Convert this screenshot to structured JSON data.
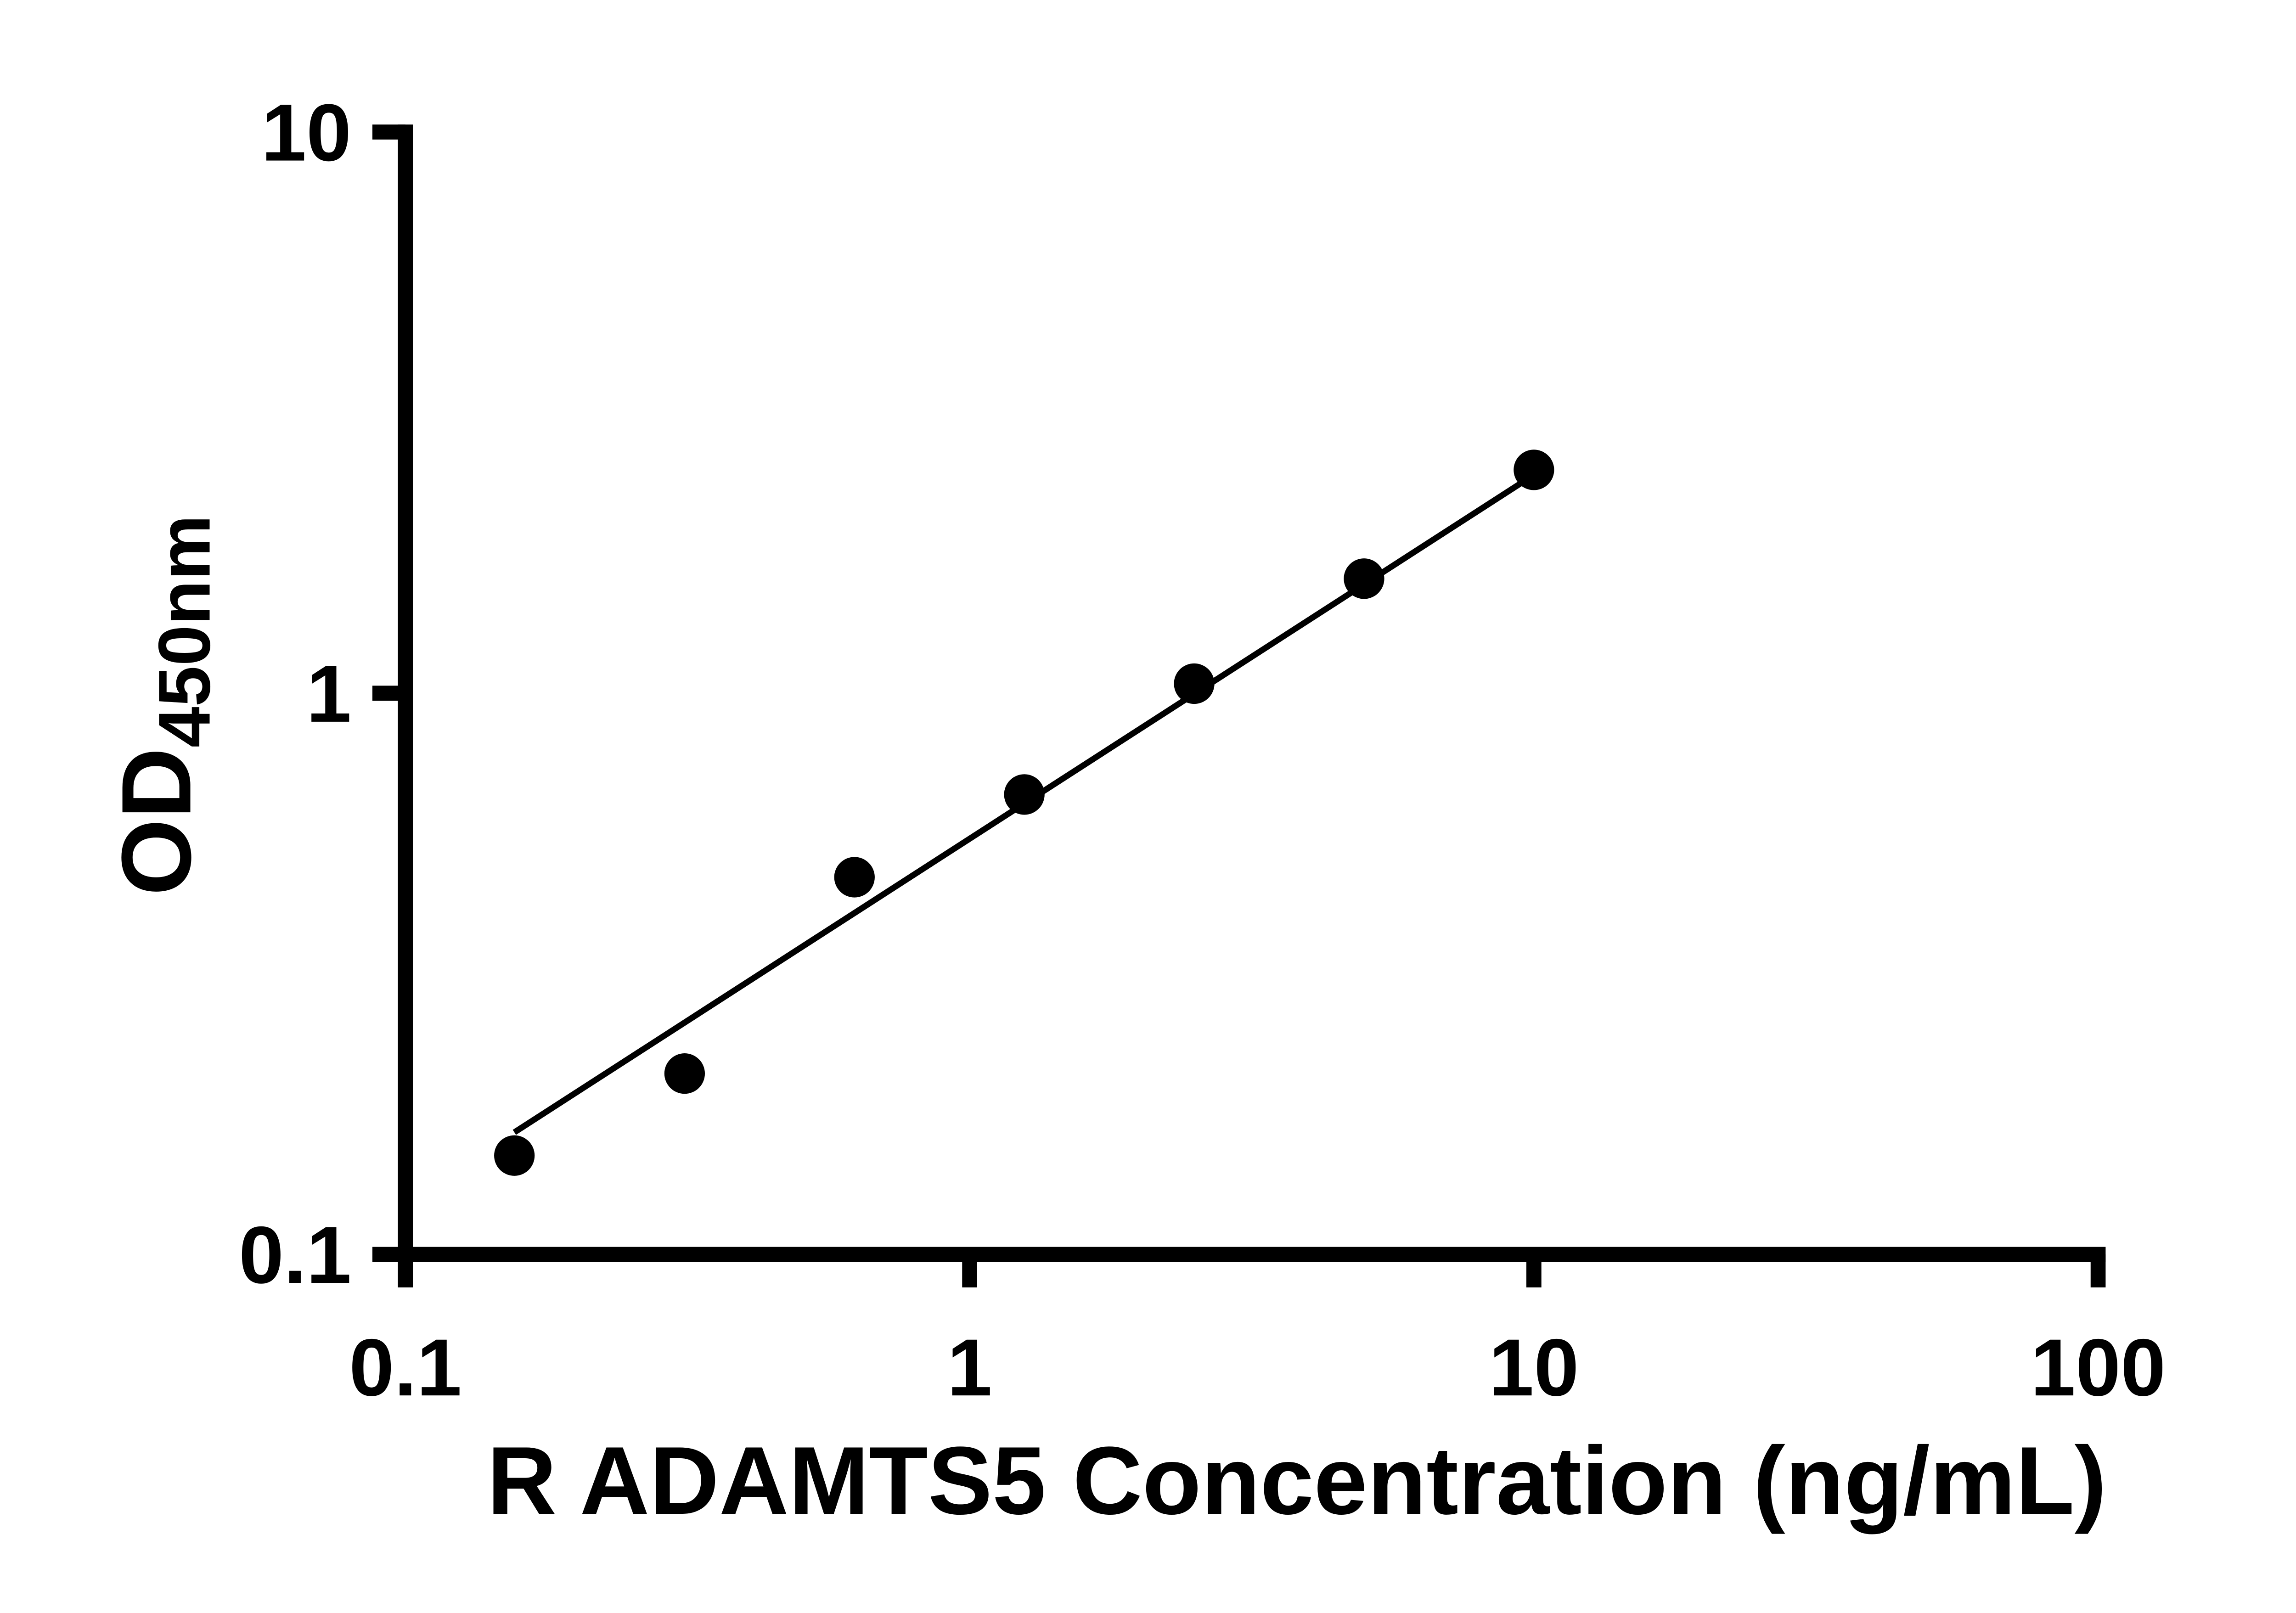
{
  "figure": {
    "background": "#ffffff"
  },
  "chart_data": {
    "type": "scatter",
    "title": "",
    "xlabel": "R ADAMTS5 Concentration (ng/mL)",
    "ylabel": "OD450nm",
    "ylabel_main": "OD",
    "ylabel_subscript": "450nm",
    "x_scale": "log",
    "y_scale": "log",
    "xlim": [
      0.1,
      100
    ],
    "ylim": [
      0.1,
      10
    ],
    "x_ticks": [
      0.1,
      1,
      10,
      100
    ],
    "x_tick_labels": [
      "0.1",
      "1",
      "10",
      "100"
    ],
    "y_ticks": [
      0.1,
      1,
      10
    ],
    "y_tick_labels": [
      "0.1",
      "1",
      "10"
    ],
    "grid": false,
    "legend": false,
    "axis_color": "#000000",
    "marker": {
      "shape": "circle",
      "color": "#000000"
    },
    "points": [
      {
        "x": 0.156,
        "y": 0.15
      },
      {
        "x": 0.3125,
        "y": 0.21
      },
      {
        "x": 0.625,
        "y": 0.47
      },
      {
        "x": 1.25,
        "y": 0.66
      },
      {
        "x": 2.5,
        "y": 1.04
      },
      {
        "x": 5,
        "y": 1.6
      },
      {
        "x": 10,
        "y": 2.5
      }
    ],
    "trendline": {
      "x1": 0.156,
      "y1": 0.165,
      "x2": 10,
      "y2": 2.45,
      "color": "#000000"
    }
  }
}
